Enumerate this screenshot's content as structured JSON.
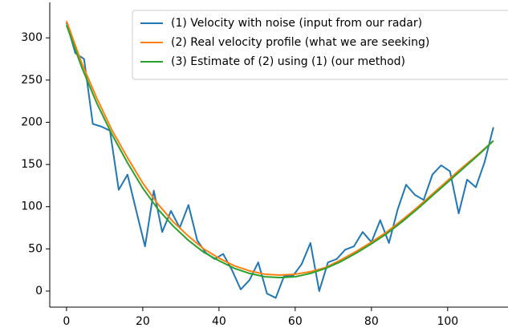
{
  "chart_data": {
    "type": "line",
    "xlim": [
      -4.4,
      115.2
    ],
    "ylim": [
      -19,
      342
    ],
    "xticks": [
      0,
      20,
      40,
      60,
      80,
      100
    ],
    "yticks": [
      0,
      50,
      100,
      150,
      200,
      250,
      300
    ],
    "legend": "upper right",
    "series": [
      {
        "name": "(1) Velocity with noise (input from our radar)",
        "color": "#1f77b4",
        "x": [
          0,
          2.3,
          4.6,
          6.9,
          9.1,
          11.4,
          13.7,
          16,
          18.3,
          20.6,
          22.9,
          25.1,
          27.4,
          29.7,
          32,
          34.3,
          36.6,
          38.9,
          41.1,
          43.4,
          45.7,
          48,
          50.3,
          52.6,
          54.9,
          57.1,
          59.4,
          61.7,
          64,
          66.3,
          68.6,
          70.9,
          73.1,
          75.4,
          77.7,
          80,
          82.3,
          84.6,
          86.9,
          89.1,
          91.4,
          93.7,
          96,
          98.3,
          100.6,
          102.9,
          105.1,
          107.4,
          109.7,
          112
        ],
        "values": [
          318,
          282,
          275,
          198,
          195,
          190,
          120,
          138,
          95,
          53,
          119,
          70,
          95,
          75,
          102,
          60,
          45,
          38,
          44,
          25,
          2,
          13,
          34,
          -3,
          -8,
          18,
          18,
          32,
          57,
          0,
          34,
          38,
          49,
          53,
          70,
          58,
          84,
          57,
          97,
          126,
          114,
          108,
          138,
          149,
          142,
          92,
          132,
          123,
          153,
          194
        ]
      },
      {
        "name": "(2) Real velocity profile (what we are seeking)",
        "color": "#ff7f0e",
        "x": [
          0,
          4,
          8,
          12,
          16,
          20,
          24,
          28,
          32,
          36,
          40,
          44,
          48,
          52,
          56,
          60,
          64,
          68,
          72,
          76,
          80,
          84,
          88,
          92,
          96,
          100,
          104,
          108,
          112
        ],
        "values": [
          320,
          270,
          228,
          190,
          158,
          128,
          103,
          82,
          65,
          50,
          39,
          30,
          24,
          20,
          19,
          20,
          23,
          28,
          37,
          47,
          58,
          70,
          84,
          99,
          115,
          131,
          147,
          162,
          178
        ]
      },
      {
        "name": "(3) Estimate of (2) using (1) (our method)",
        "color": "#2ca02c",
        "x": [
          0,
          4,
          8,
          12,
          16,
          20,
          24,
          28,
          32,
          36,
          40,
          44,
          48,
          52,
          56,
          60,
          64,
          68,
          72,
          76,
          80,
          84,
          88,
          92,
          96,
          100,
          104,
          108,
          112
        ],
        "values": [
          315,
          265,
          222,
          185,
          152,
          122,
          97,
          77,
          60,
          46,
          36,
          27,
          21,
          17,
          16,
          17,
          21,
          27,
          35,
          45,
          56,
          68,
          82,
          97,
          113,
          129,
          145,
          161,
          178
        ]
      }
    ]
  }
}
